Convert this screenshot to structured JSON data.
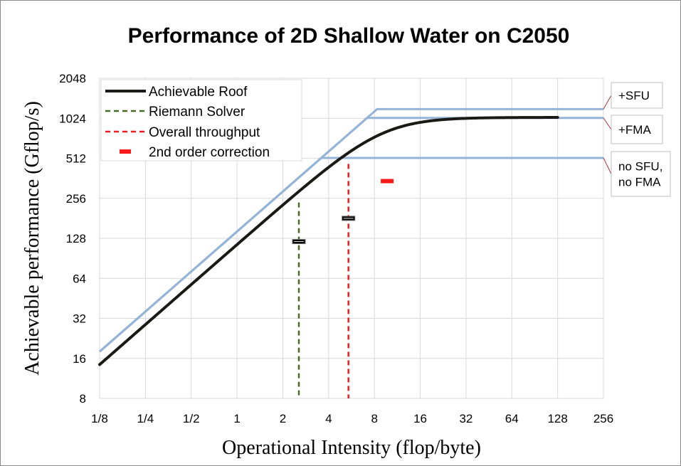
{
  "chart_data": {
    "type": "line",
    "title": "Performance of 2D Shallow Water on C2050",
    "xlabel": "Operational Intensity (flop/byte)",
    "ylabel": "Achievable performance (Gflop/s)",
    "xscale": "log2",
    "yscale": "log2",
    "xlim": [
      0.125,
      256
    ],
    "ylim": [
      8,
      2048
    ],
    "x_ticks": [
      {
        "value": 0.125,
        "label": "1/8"
      },
      {
        "value": 0.25,
        "label": "1/4"
      },
      {
        "value": 0.5,
        "label": "1/2"
      },
      {
        "value": 1,
        "label": "1"
      },
      {
        "value": 2,
        "label": "2"
      },
      {
        "value": 4,
        "label": "4"
      },
      {
        "value": 8,
        "label": "8"
      },
      {
        "value": 16,
        "label": "16"
      },
      {
        "value": 32,
        "label": "32"
      },
      {
        "value": 64,
        "label": "64"
      },
      {
        "value": 128,
        "label": "128"
      },
      {
        "value": 256,
        "label": "256"
      }
    ],
    "y_ticks": [
      {
        "value": 8,
        "label": "8"
      },
      {
        "value": 16,
        "label": "16"
      },
      {
        "value": 32,
        "label": "32"
      },
      {
        "value": 64,
        "label": "64"
      },
      {
        "value": 128,
        "label": "128"
      },
      {
        "value": 256,
        "label": "256"
      },
      {
        "value": 512,
        "label": "512"
      },
      {
        "value": 1024,
        "label": "1024"
      },
      {
        "value": 2048,
        "label": "2048"
      }
    ],
    "grid": true,
    "legend_position": "top-left",
    "legend": [
      {
        "name": "Achievable Roof",
        "style": "solid",
        "color": "#1a1a14"
      },
      {
        "name": "Riemann Solver",
        "style": "dashed",
        "color": "#4a6b23"
      },
      {
        "name": "Overall throughput",
        "style": "dashed",
        "color": "#ff1a1a"
      },
      {
        "name": "2nd order correction",
        "style": "marker",
        "color": "#ff1a1a"
      }
    ],
    "rooflines": [
      {
        "name": "+SFU",
        "bandwidth": 144,
        "peak": 1200,
        "color": "#95b3d7"
      },
      {
        "name": "+FMA",
        "bandwidth": 144,
        "peak": 1030,
        "color": "#95b3d7"
      },
      {
        "name": "no SFU, no FMA",
        "bandwidth": 144,
        "peak": 515,
        "color": "#95b3d7"
      }
    ],
    "achievable_roof": {
      "bandwidth": 115,
      "peak": 1040,
      "knee_sharpness": 2.5,
      "x_range": [
        0.125,
        128
      ]
    },
    "vertical_lines": [
      {
        "series": "Riemann Solver",
        "x": 2.55,
        "y_top": 238
      },
      {
        "series": "Overall throughput",
        "x": 5.4,
        "y_top": 465
      }
    ],
    "markers": [
      {
        "series": "Riemann Solver",
        "x": 2.55,
        "y": 121
      },
      {
        "series": "Overall throughput",
        "x": 5.4,
        "y": 181
      },
      {
        "series": "2nd order correction",
        "x": 9.7,
        "y": 345
      }
    ],
    "callouts": [
      {
        "lines": [
          "+SFU"
        ],
        "roof": "+SFU"
      },
      {
        "lines": [
          "+FMA"
        ],
        "roof": "+FMA"
      },
      {
        "lines": [
          "no SFU,",
          "no FMA"
        ],
        "roof": "no SFU, no FMA"
      }
    ]
  }
}
